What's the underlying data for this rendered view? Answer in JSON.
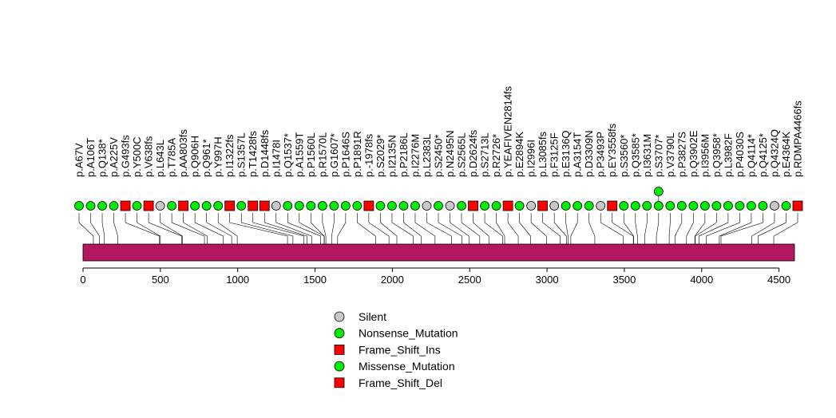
{
  "chart_data": {
    "type": "lollipop",
    "xlim": [
      0,
      4600
    ],
    "protein_length": 4600,
    "ticks": [
      0,
      500,
      1000,
      1500,
      2000,
      2500,
      3000,
      3500,
      4000,
      4500
    ],
    "domain_color": "#B3175F",
    "colors": {
      "Silent": "#C8C8C8",
      "Nonsense_Mutation": "#00EE00",
      "Frame_Shift_Ins": "#FF0000",
      "Missense_Mutation": "#00EE00",
      "Frame_Shift_Del": "#FF0000"
    },
    "legend": [
      {
        "label": "Silent",
        "shape": "circle",
        "type": "Silent"
      },
      {
        "label": "Nonsense_Mutation",
        "shape": "circle",
        "type": "Nonsense_Mutation"
      },
      {
        "label": "Frame_Shift_Ins",
        "shape": "square",
        "type": "Frame_Shift_Ins"
      },
      {
        "label": "Missense_Mutation",
        "shape": "circle",
        "type": "Missense_Mutation"
      },
      {
        "label": "Frame_Shift_Del",
        "shape": "square",
        "type": "Frame_Shift_Del"
      }
    ],
    "mutations": [
      {
        "label": "p.A67V",
        "pos": 67,
        "type": "Missense_Mutation"
      },
      {
        "label": "p.A106T",
        "pos": 106,
        "type": "Missense_Mutation"
      },
      {
        "label": "p.Q138*",
        "pos": 138,
        "type": "Nonsense_Mutation"
      },
      {
        "label": "p.A225V",
        "pos": 225,
        "type": "Missense_Mutation"
      },
      {
        "label": "p.G493fs",
        "pos": 493,
        "type": "Frame_Shift_Del"
      },
      {
        "label": "p.Y500C",
        "pos": 500,
        "type": "Missense_Mutation"
      },
      {
        "label": "p.V638fs",
        "pos": 638,
        "type": "Frame_Shift_Del"
      },
      {
        "label": "p.L643L",
        "pos": 643,
        "type": "Silent"
      },
      {
        "label": "p.T785A",
        "pos": 785,
        "type": "Missense_Mutation"
      },
      {
        "label": "p.AA803fs",
        "pos": 803,
        "type": "Frame_Shift_Ins"
      },
      {
        "label": "p.Q906H",
        "pos": 906,
        "type": "Missense_Mutation"
      },
      {
        "label": "p.Q961*",
        "pos": 961,
        "type": "Nonsense_Mutation"
      },
      {
        "label": "p.Y997H",
        "pos": 997,
        "type": "Missense_Mutation"
      },
      {
        "label": "p.I1322fs",
        "pos": 1322,
        "type": "Frame_Shift_Del"
      },
      {
        "label": "p.S1357L",
        "pos": 1357,
        "type": "Missense_Mutation"
      },
      {
        "label": "p.T1428fs",
        "pos": 1428,
        "type": "Frame_Shift_Del"
      },
      {
        "label": "p.D1448fs",
        "pos": 1448,
        "type": "Frame_Shift_Del"
      },
      {
        "label": "p.I1478I",
        "pos": 1478,
        "type": "Silent"
      },
      {
        "label": "p.Q1537*",
        "pos": 1537,
        "type": "Nonsense_Mutation"
      },
      {
        "label": "p.A1559T",
        "pos": 1559,
        "type": "Missense_Mutation"
      },
      {
        "label": "p.P1560L",
        "pos": 1560,
        "type": "Missense_Mutation"
      },
      {
        "label": "p.R1570L",
        "pos": 1570,
        "type": "Missense_Mutation"
      },
      {
        "label": "p.G1607*",
        "pos": 1607,
        "type": "Nonsense_Mutation"
      },
      {
        "label": "p.P1646S",
        "pos": 1646,
        "type": "Missense_Mutation"
      },
      {
        "label": "p.P1891R",
        "pos": 1891,
        "type": "Missense_Mutation"
      },
      {
        "label": "p.-1978fs",
        "pos": 1978,
        "type": "Frame_Shift_Ins"
      },
      {
        "label": "p.S2029*",
        "pos": 2029,
        "type": "Nonsense_Mutation"
      },
      {
        "label": "p.I2135N",
        "pos": 2135,
        "type": "Missense_Mutation"
      },
      {
        "label": "p.P2186L",
        "pos": 2186,
        "type": "Missense_Mutation"
      },
      {
        "label": "p.I2276M",
        "pos": 2276,
        "type": "Missense_Mutation"
      },
      {
        "label": "p.L2383L",
        "pos": 2383,
        "type": "Silent"
      },
      {
        "label": "p.S2450*",
        "pos": 2450,
        "type": "Nonsense_Mutation"
      },
      {
        "label": "p.N2495N",
        "pos": 2495,
        "type": "Silent"
      },
      {
        "label": "p.S2565L",
        "pos": 2565,
        "type": "Missense_Mutation"
      },
      {
        "label": "p.D2624fs",
        "pos": 2624,
        "type": "Frame_Shift_Del"
      },
      {
        "label": "p.S2713L",
        "pos": 2713,
        "type": "Missense_Mutation"
      },
      {
        "label": "p.R2726*",
        "pos": 2726,
        "type": "Nonsense_Mutation"
      },
      {
        "label": "p.YEAFIVEN2814fs",
        "pos": 2814,
        "type": "Frame_Shift_Del"
      },
      {
        "label": "p.E2894K",
        "pos": 2894,
        "type": "Missense_Mutation"
      },
      {
        "label": "p.I2996I",
        "pos": 2996,
        "type": "Silent"
      },
      {
        "label": "p.L3085fs",
        "pos": 3085,
        "type": "Frame_Shift_Del"
      },
      {
        "label": "p.F3125F",
        "pos": 3125,
        "type": "Silent"
      },
      {
        "label": "p.E3136Q",
        "pos": 3136,
        "type": "Missense_Mutation"
      },
      {
        "label": "p.A3154T",
        "pos": 3154,
        "type": "Missense_Mutation"
      },
      {
        "label": "p.D3309N",
        "pos": 3309,
        "type": "Missense_Mutation"
      },
      {
        "label": "p.P3493P",
        "pos": 3493,
        "type": "Silent"
      },
      {
        "label": "p.EY3558fs",
        "pos": 3558,
        "type": "Frame_Shift_Ins"
      },
      {
        "label": "p.S3560*",
        "pos": 3560,
        "type": "Nonsense_Mutation"
      },
      {
        "label": "p.Q3585*",
        "pos": 3585,
        "type": "Nonsense_Mutation"
      },
      {
        "label": "p.I3631M",
        "pos": 3631,
        "type": "Missense_Mutation"
      },
      {
        "label": "p.S3707*",
        "pos": 3707,
        "type": "Nonsense_Mutation"
      },
      {
        "label": "p.V3790L",
        "pos": 3790,
        "type": "Missense_Mutation"
      },
      {
        "label": "p.P3827S",
        "pos": 3827,
        "type": "Missense_Mutation"
      },
      {
        "label": "p.Q3902E",
        "pos": 3902,
        "type": "Missense_Mutation"
      },
      {
        "label": "p.I3956M",
        "pos": 3956,
        "type": "Missense_Mutation"
      },
      {
        "label": "p.Q3958*",
        "pos": 3958,
        "type": "Nonsense_Mutation"
      },
      {
        "label": "p.L3982F",
        "pos": 3982,
        "type": "Missense_Mutation"
      },
      {
        "label": "p.P4030S",
        "pos": 4030,
        "type": "Missense_Mutation"
      },
      {
        "label": "p.Q4114*",
        "pos": 4114,
        "type": "Nonsense_Mutation"
      },
      {
        "label": "p.Q4125*",
        "pos": 4125,
        "type": "Nonsense_Mutation"
      },
      {
        "label": "p.Q4324Q",
        "pos": 4324,
        "type": "Silent"
      },
      {
        "label": "p.E4364K",
        "pos": 4364,
        "type": "Missense_Mutation"
      },
      {
        "label": "p.RDMPA4466fs",
        "pos": 4466,
        "type": "Frame_Shift_Ins"
      }
    ],
    "stacked": [
      {
        "pos": 3707,
        "type": "Missense_Mutation"
      }
    ]
  }
}
